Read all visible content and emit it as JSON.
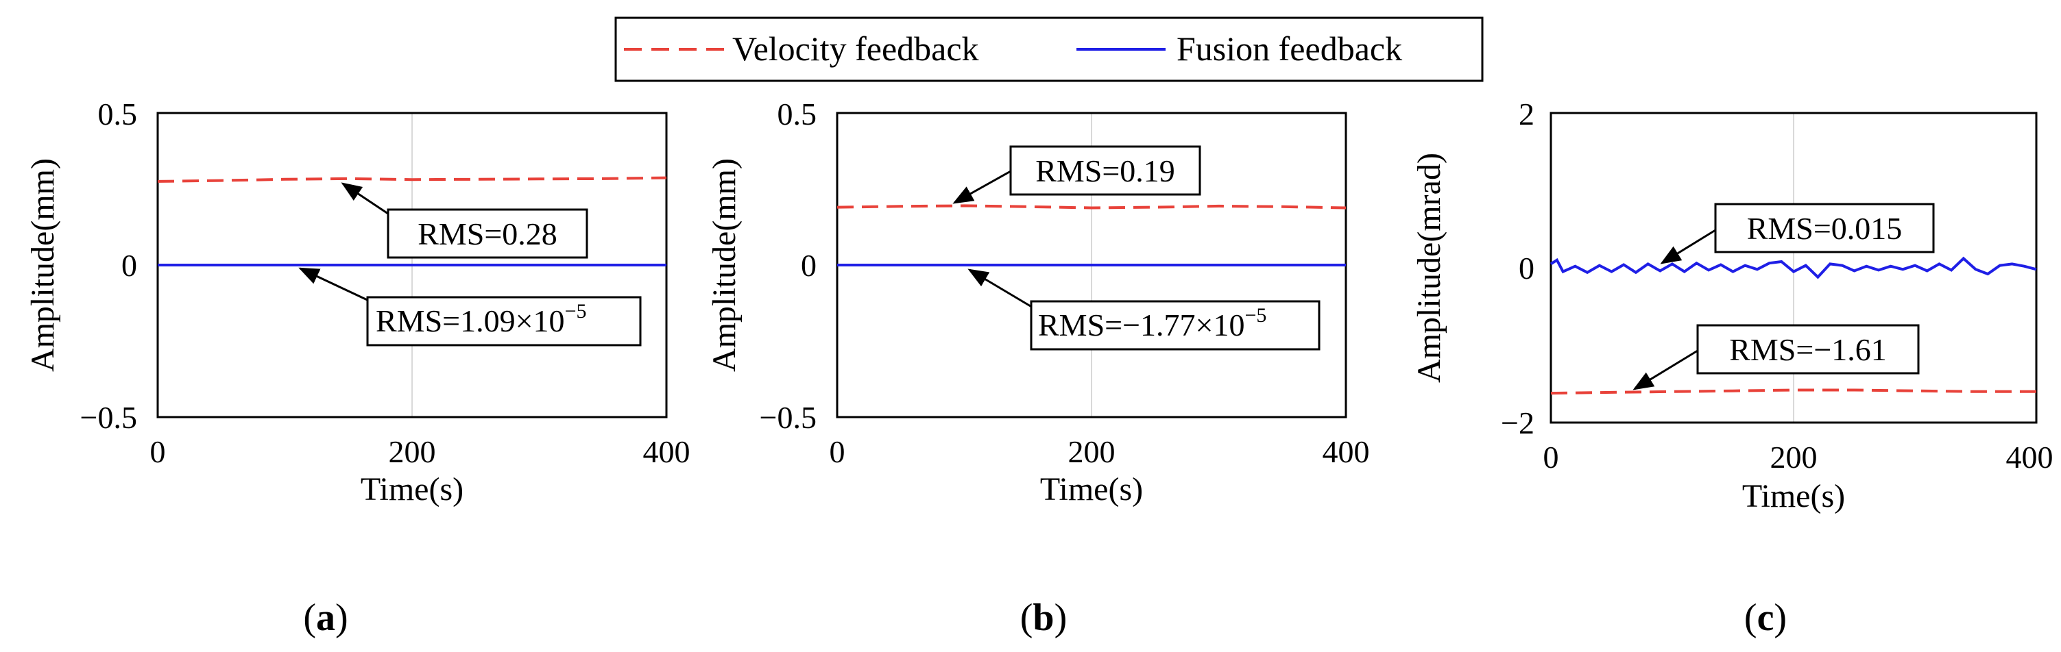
{
  "legend": {
    "items": [
      {
        "label": "Velocity feedback",
        "color": "#e8423a",
        "dash": true
      },
      {
        "label": "Fusion feedback",
        "color": "#1f1fe6",
        "dash": false
      }
    ]
  },
  "chart_data": [
    {
      "type": "line",
      "panel_label": "a",
      "xlabel": "Time(s)",
      "ylabel": "Amplitude(mm)",
      "xlim": [
        0,
        400
      ],
      "ylim": [
        -0.5,
        0.5
      ],
      "xticks": [
        0,
        200,
        400
      ],
      "xtick_labels": [
        "0",
        "200",
        "400"
      ],
      "yticks": [
        0.5,
        0,
        -0.5
      ],
      "ytick_labels": [
        "0.5",
        "0",
        "−0.5"
      ],
      "grid": true,
      "series": [
        {
          "name": "Velocity feedback",
          "color": "#e8423a",
          "dash": true,
          "x": [
            0,
            50,
            100,
            150,
            200,
            250,
            300,
            350,
            400
          ],
          "y": [
            0.275,
            0.278,
            0.282,
            0.284,
            0.281,
            0.282,
            0.283,
            0.284,
            0.287
          ]
        },
        {
          "name": "Fusion feedback",
          "color": "#1f1fe6",
          "dash": false,
          "x": [
            0,
            100,
            200,
            300,
            400
          ],
          "y": [
            0,
            0,
            0,
            0,
            0
          ]
        }
      ],
      "annotations": [
        {
          "text": "RMS=0.28"
        },
        {
          "text": "RMS=1.09×10",
          "sup": "−5"
        }
      ]
    },
    {
      "type": "line",
      "panel_label": "b",
      "xlabel": "Time(s)",
      "ylabel": "Amplitude(mm)",
      "xlim": [
        0,
        400
      ],
      "ylim": [
        -0.5,
        0.5
      ],
      "xticks": [
        0,
        200,
        400
      ],
      "xtick_labels": [
        "0",
        "200",
        "400"
      ],
      "yticks": [
        0.5,
        0,
        -0.5
      ],
      "ytick_labels": [
        "0.5",
        "0",
        "−0.5"
      ],
      "grid": true,
      "series": [
        {
          "name": "Velocity feedback",
          "color": "#e8423a",
          "dash": true,
          "x": [
            0,
            50,
            100,
            150,
            200,
            250,
            300,
            350,
            400
          ],
          "y": [
            0.19,
            0.193,
            0.195,
            0.192,
            0.188,
            0.19,
            0.194,
            0.192,
            0.188
          ]
        },
        {
          "name": "Fusion feedback",
          "color": "#1f1fe6",
          "dash": false,
          "x": [
            0,
            100,
            200,
            300,
            400
          ],
          "y": [
            0,
            0,
            0,
            0,
            0
          ]
        }
      ],
      "annotations": [
        {
          "text": "RMS=0.19"
        },
        {
          "text": "RMS=−1.77×10",
          "sup": "−5"
        }
      ]
    },
    {
      "type": "line",
      "panel_label": "c",
      "xlabel": "Time(s)",
      "ylabel": "Amplitude(mrad)",
      "xlim": [
        0,
        400
      ],
      "ylim": [
        -2,
        2
      ],
      "xticks": [
        0,
        200,
        400
      ],
      "xtick_labels": [
        "0",
        "200",
        "400"
      ],
      "yticks": [
        2,
        0,
        -2
      ],
      "ytick_labels": [
        "2",
        "0",
        "−2"
      ],
      "grid": true,
      "series": [
        {
          "name": "Velocity feedback",
          "color": "#e8423a",
          "dash": true,
          "x": [
            0,
            50,
            100,
            150,
            200,
            250,
            300,
            350,
            400
          ],
          "y": [
            -1.62,
            -1.61,
            -1.6,
            -1.59,
            -1.58,
            -1.58,
            -1.59,
            -1.6,
            -1.6
          ]
        },
        {
          "name": "Fusion feedback",
          "color": "#1f1fe6",
          "dash": false,
          "x": [
            0,
            5,
            10,
            20,
            30,
            40,
            50,
            60,
            70,
            80,
            90,
            100,
            110,
            120,
            130,
            140,
            150,
            160,
            170,
            180,
            190,
            200,
            210,
            220,
            230,
            240,
            250,
            260,
            270,
            280,
            290,
            300,
            310,
            320,
            330,
            340,
            350,
            360,
            370,
            380,
            390,
            400
          ],
          "y": [
            0.05,
            0.1,
            -0.05,
            0.02,
            -0.06,
            0.03,
            -0.05,
            0.04,
            -0.06,
            0.05,
            -0.04,
            0.05,
            -0.05,
            0.06,
            -0.03,
            0.04,
            -0.05,
            0.03,
            -0.02,
            0.06,
            0.08,
            -0.05,
            0.03,
            -0.12,
            0.05,
            0.03,
            -0.04,
            0.02,
            -0.03,
            0.02,
            -0.02,
            0.03,
            -0.04,
            0.05,
            -0.03,
            0.12,
            -0.02,
            -0.08,
            0.03,
            0.05,
            0.02,
            -0.02
          ]
        }
      ],
      "annotations": [
        {
          "text": "RMS=0.015"
        },
        {
          "text": "RMS=−1.61"
        }
      ]
    }
  ]
}
